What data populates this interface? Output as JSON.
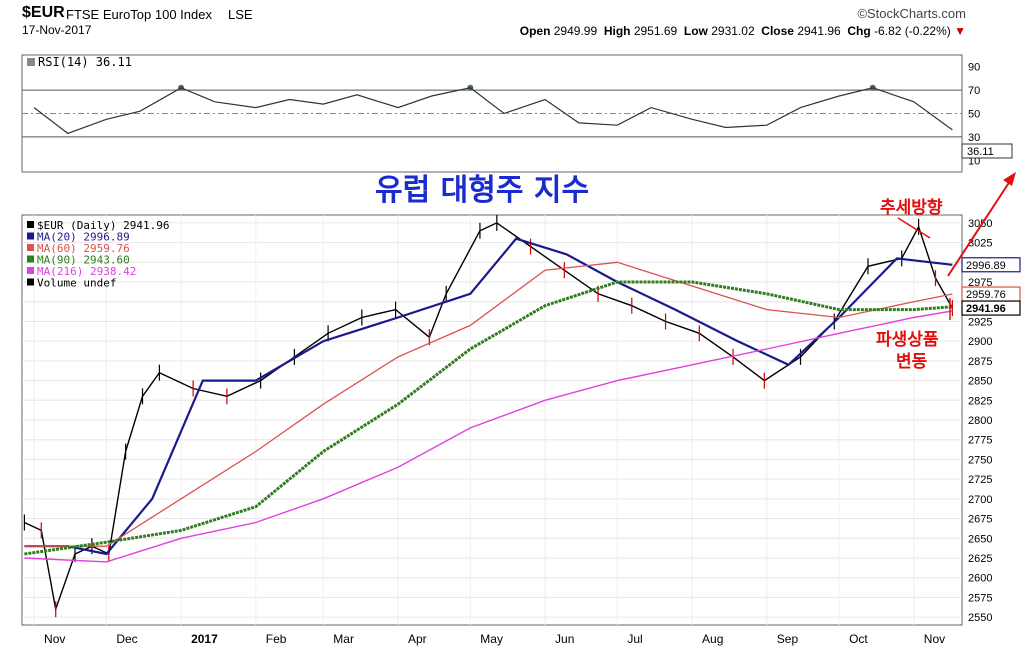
{
  "header": {
    "ticker": "$EUR",
    "name": "FTSE EuroTop 100 Index",
    "exchange": "LSE",
    "date": "17-Nov-2017",
    "brand": "©StockCharts.com",
    "open_label": "Open",
    "open": "2949.99",
    "high_label": "High",
    "high": "2951.69",
    "low_label": "Low",
    "low": "2931.02",
    "close_label": "Close",
    "close": "2941.96",
    "chg_label": "Chg",
    "chg": "-6.82 (-0.22%)"
  },
  "rsi_panel": {
    "label": "RSI(14) 36.11",
    "value_badge": "36.11",
    "ticks": [
      10,
      30,
      50,
      70,
      90
    ],
    "overbought": 70,
    "oversold": 30
  },
  "price_panel": {
    "legend": [
      {
        "text": "$EUR (Daily) 2941.96",
        "color": "#000000"
      },
      {
        "text": "MA(20) 2996.89",
        "color": "#1a1a8c"
      },
      {
        "text": "MA(60) 2959.76",
        "color": "#d9534f"
      },
      {
        "text": "MA(90) 2943.60",
        "color": "#2e7d1e"
      },
      {
        "text": "MA(216) 2938.42",
        "color": "#e040e0"
      },
      {
        "text": "Volume undef",
        "color": "#000000"
      }
    ],
    "right_badges": [
      {
        "text": "2996.89",
        "value": 2996.89,
        "color": "#1a1a8c"
      },
      {
        "text": "2959.76",
        "value": 2959.76,
        "color": "#d9534f"
      },
      {
        "text": "2941.96",
        "value": 2941.96,
        "color": "#000000"
      }
    ]
  },
  "annotations": {
    "title_korean": "유럽 대형주 지수",
    "trend_label": "추세방향",
    "deriv_line1": "파생상품",
    "deriv_line2": "변동"
  },
  "colors": {
    "ma20": "#1a1a8c",
    "ma60": "#d9534f",
    "ma90": "#2e7d1e",
    "ma216": "#e040e0",
    "up": "#000000",
    "down": "#cc0000",
    "annotation": "#e01010",
    "title": "#1a2bd0"
  },
  "chart_data": [
    {
      "type": "line",
      "title": "RSI(14)",
      "ylim": [
        0,
        100
      ],
      "yticks": [
        10,
        30,
        50,
        70,
        90
      ],
      "x": [
        "2016-11-01",
        "2016-11-15",
        "2016-12-01",
        "2016-12-15",
        "2017-01-01",
        "2017-01-15",
        "2017-02-01",
        "2017-02-15",
        "2017-03-01",
        "2017-03-15",
        "2017-04-01",
        "2017-04-15",
        "2017-05-01",
        "2017-05-15",
        "2017-06-01",
        "2017-06-15",
        "2017-07-01",
        "2017-07-15",
        "2017-08-01",
        "2017-08-15",
        "2017-09-01",
        "2017-09-15",
        "2017-10-01",
        "2017-10-15",
        "2017-11-01",
        "2017-11-17"
      ],
      "values": [
        55,
        33,
        45,
        52,
        72,
        60,
        55,
        62,
        58,
        66,
        55,
        65,
        72,
        50,
        62,
        42,
        40,
        55,
        45,
        38,
        40,
        55,
        65,
        72,
        60,
        36
      ]
    },
    {
      "type": "line",
      "title": "$EUR (Daily) 2941.96",
      "ylim": [
        2540,
        3060
      ],
      "yticks": [
        2550,
        2575,
        2600,
        2625,
        2650,
        2675,
        2700,
        2725,
        2750,
        2775,
        2800,
        2825,
        2850,
        2875,
        2900,
        2925,
        2950,
        2975,
        3000,
        3025,
        3050
      ],
      "xticks": [
        "Nov",
        "Dec",
        "2017",
        "Feb",
        "Mar",
        "Apr",
        "May",
        "Jun",
        "Jul",
        "Aug",
        "Sep",
        "Oct",
        "Nov"
      ],
      "series": [
        {
          "name": "$EUR",
          "x": [
            "2016-10-28",
            "2016-11-04",
            "2016-11-10",
            "2016-11-18",
            "2016-11-25",
            "2016-12-02",
            "2016-12-09",
            "2016-12-16",
            "2016-12-23",
            "2017-01-06",
            "2017-01-20",
            "2017-02-03",
            "2017-02-17",
            "2017-03-03",
            "2017-03-17",
            "2017-03-31",
            "2017-04-14",
            "2017-04-21",
            "2017-05-05",
            "2017-05-12",
            "2017-05-26",
            "2017-06-09",
            "2017-06-23",
            "2017-07-07",
            "2017-07-21",
            "2017-08-04",
            "2017-08-18",
            "2017-08-31",
            "2017-09-15",
            "2017-09-29",
            "2017-10-13",
            "2017-10-27",
            "2017-11-03",
            "2017-11-10",
            "2017-11-17"
          ],
          "values": [
            2670,
            2660,
            2560,
            2630,
            2640,
            2630,
            2760,
            2830,
            2860,
            2840,
            2830,
            2850,
            2880,
            2910,
            2930,
            2940,
            2905,
            2960,
            3040,
            3050,
            3020,
            2990,
            2960,
            2945,
            2925,
            2910,
            2880,
            2850,
            2880,
            2925,
            2995,
            3005,
            3045,
            2980,
            2941.96
          ]
        },
        {
          "name": "MA(20)",
          "x": [
            "2016-10-28",
            "2016-11-15",
            "2016-12-01",
            "2016-12-20",
            "2017-01-10",
            "2017-02-01",
            "2017-03-01",
            "2017-04-01",
            "2017-05-01",
            "2017-05-20",
            "2017-06-10",
            "2017-07-01",
            "2017-07-25",
            "2017-08-20",
            "2017-09-10",
            "2017-10-01",
            "2017-10-25",
            "2017-11-17"
          ],
          "values": [
            2640,
            2640,
            2630,
            2700,
            2850,
            2850,
            2900,
            2930,
            2960,
            3030,
            3010,
            2975,
            2940,
            2900,
            2870,
            2930,
            3005,
            2996.89
          ]
        },
        {
          "name": "MA(60)",
          "x": [
            "2016-10-28",
            "2016-12-01",
            "2017-01-01",
            "2017-02-01",
            "2017-03-01",
            "2017-04-01",
            "2017-05-01",
            "2017-06-01",
            "2017-07-01",
            "2017-08-01",
            "2017-09-01",
            "2017-10-01",
            "2017-11-01",
            "2017-11-17"
          ],
          "values": [
            2640,
            2640,
            2700,
            2760,
            2820,
            2880,
            2920,
            2990,
            3000,
            2970,
            2940,
            2930,
            2950,
            2959.76
          ]
        },
        {
          "name": "MA(90)",
          "x": [
            "2016-10-28",
            "2016-12-01",
            "2017-01-01",
            "2017-02-01",
            "2017-03-01",
            "2017-04-01",
            "2017-05-01",
            "2017-06-01",
            "2017-07-01",
            "2017-08-01",
            "2017-09-01",
            "2017-10-01",
            "2017-11-01",
            "2017-11-17"
          ],
          "values": [
            2630,
            2645,
            2660,
            2690,
            2760,
            2820,
            2890,
            2945,
            2975,
            2975,
            2960,
            2940,
            2940,
            2943.6
          ]
        },
        {
          "name": "MA(216)",
          "x": [
            "2016-10-28",
            "2016-12-01",
            "2017-01-01",
            "2017-02-01",
            "2017-03-01",
            "2017-04-01",
            "2017-05-01",
            "2017-06-01",
            "2017-07-01",
            "2017-08-01",
            "2017-09-01",
            "2017-10-01",
            "2017-11-01",
            "2017-11-17"
          ],
          "values": [
            2625,
            2620,
            2650,
            2670,
            2700,
            2740,
            2790,
            2825,
            2850,
            2870,
            2890,
            2910,
            2930,
            2938.42
          ]
        }
      ]
    }
  ]
}
